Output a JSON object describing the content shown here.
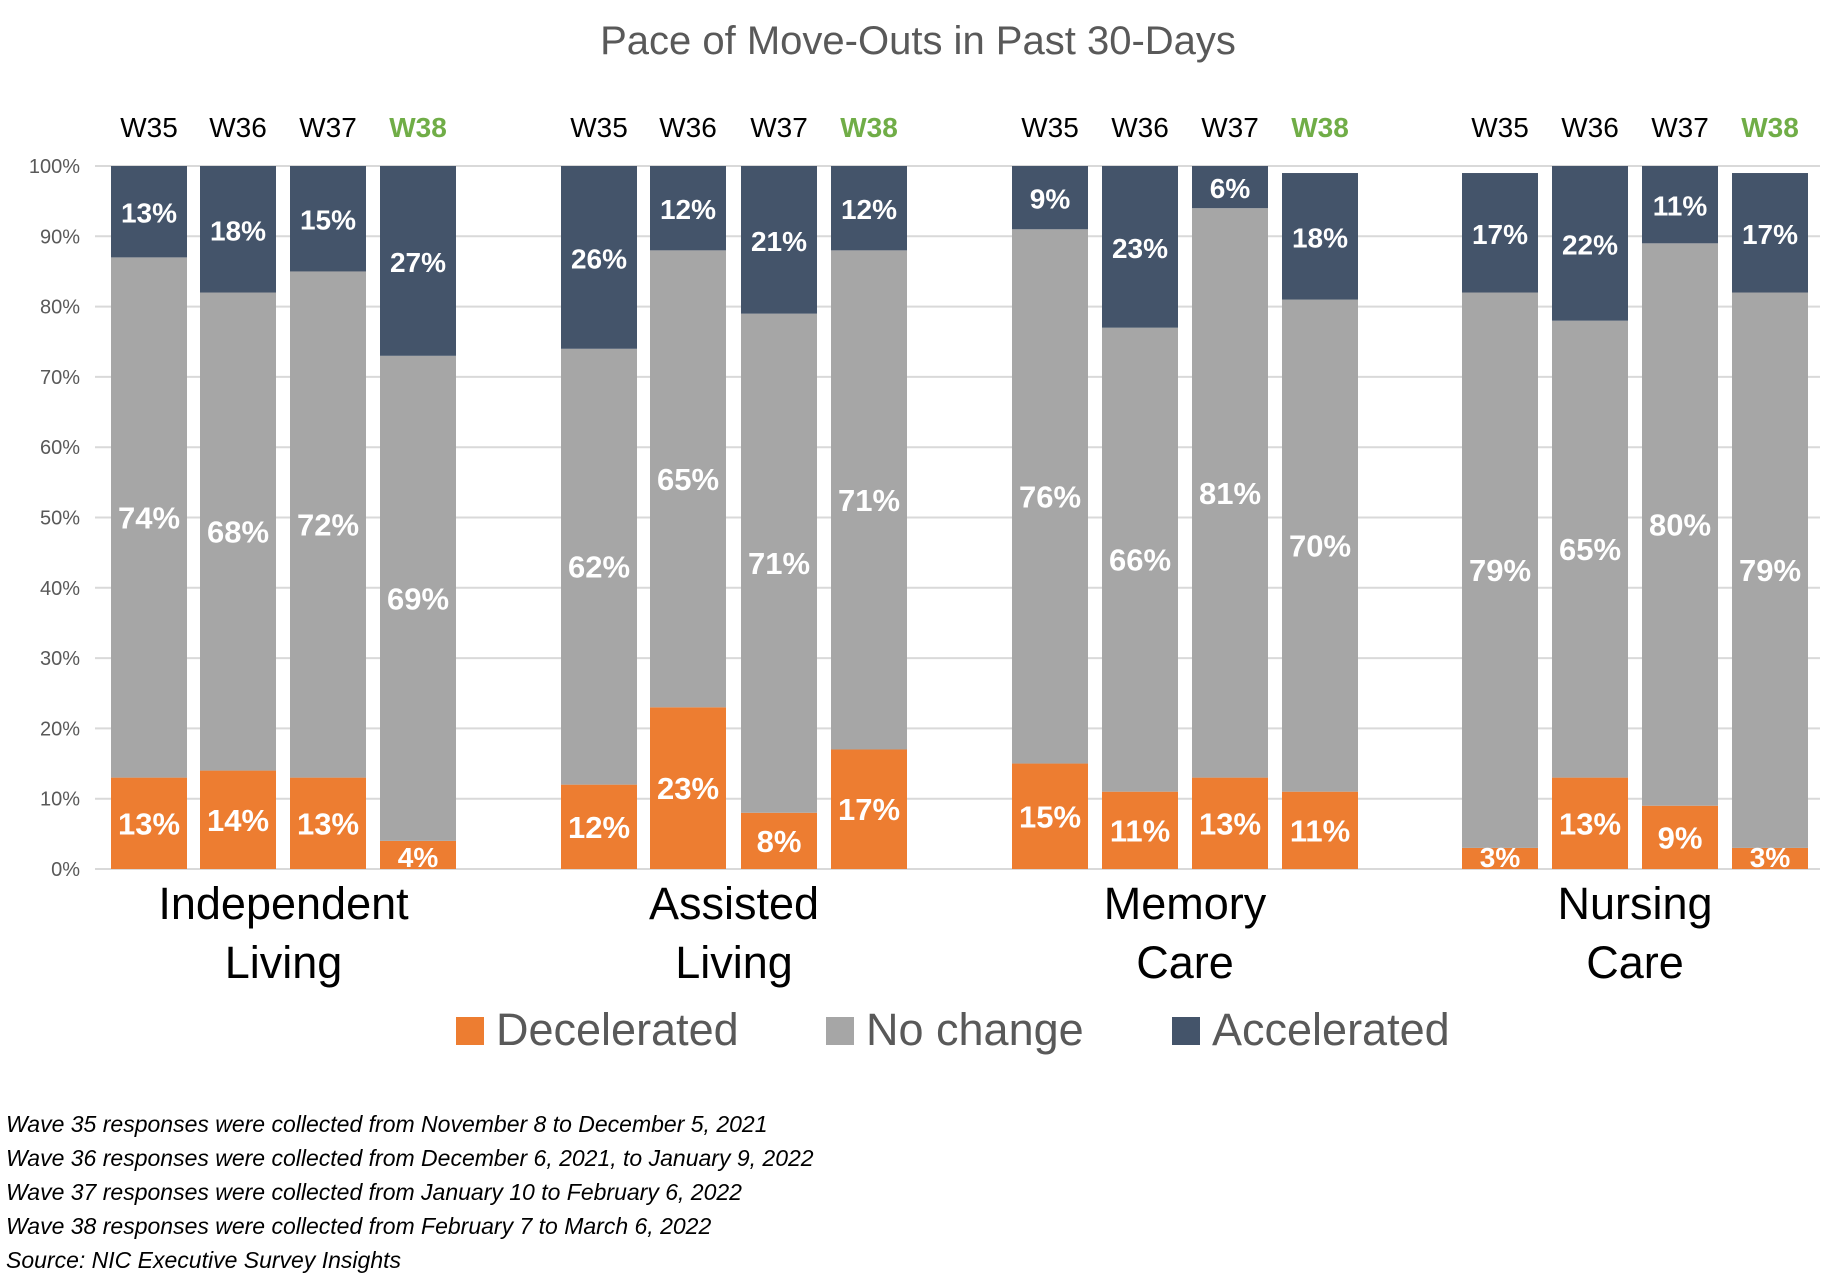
{
  "chart_data": {
    "type": "bar",
    "stacked": true,
    "title": "Pace of Move-Outs in Past 30-Days",
    "y_ticks": [
      "0%",
      "10%",
      "20%",
      "30%",
      "40%",
      "50%",
      "60%",
      "70%",
      "80%",
      "90%",
      "100%"
    ],
    "ylim": [
      0,
      100
    ],
    "grid": true,
    "legend_position": "bottom",
    "waves": [
      "W35",
      "W36",
      "W37",
      "W38"
    ],
    "highlight_wave": "W38",
    "series_order": [
      "Decelerated",
      "No change",
      "Accelerated"
    ],
    "colors": {
      "Decelerated": "#ed7d31",
      "No change": "#a6a6a6",
      "Accelerated": "#44546a",
      "highlight": "#70ad47"
    },
    "groups": [
      {
        "name_lines": [
          "Independent",
          "Living"
        ],
        "bars": [
          {
            "wave": "W35",
            "Decelerated": 13,
            "No change": 74,
            "Accelerated": 13
          },
          {
            "wave": "W36",
            "Decelerated": 14,
            "No change": 68,
            "Accelerated": 18
          },
          {
            "wave": "W37",
            "Decelerated": 13,
            "No change": 72,
            "Accelerated": 15
          },
          {
            "wave": "W38",
            "Decelerated": 4,
            "No change": 69,
            "Accelerated": 27
          }
        ]
      },
      {
        "name_lines": [
          "Assisted",
          "Living"
        ],
        "bars": [
          {
            "wave": "W35",
            "Decelerated": 12,
            "No change": 62,
            "Accelerated": 26
          },
          {
            "wave": "W36",
            "Decelerated": 23,
            "No change": 65,
            "Accelerated": 12
          },
          {
            "wave": "W37",
            "Decelerated": 8,
            "No change": 71,
            "Accelerated": 21
          },
          {
            "wave": "W38",
            "Decelerated": 17,
            "No change": 71,
            "Accelerated": 12
          }
        ]
      },
      {
        "name_lines": [
          "Memory",
          "Care"
        ],
        "bars": [
          {
            "wave": "W35",
            "Decelerated": 15,
            "No change": 76,
            "Accelerated": 9
          },
          {
            "wave": "W36",
            "Decelerated": 11,
            "No change": 66,
            "Accelerated": 23
          },
          {
            "wave": "W37",
            "Decelerated": 13,
            "No change": 81,
            "Accelerated": 6
          },
          {
            "wave": "W38",
            "Decelerated": 11,
            "No change": 70,
            "Accelerated": 18
          }
        ]
      },
      {
        "name_lines": [
          "Nursing",
          "Care"
        ],
        "bars": [
          {
            "wave": "W35",
            "Decelerated": 3,
            "No change": 79,
            "Accelerated": 17
          },
          {
            "wave": "W36",
            "Decelerated": 13,
            "No change": 65,
            "Accelerated": 22
          },
          {
            "wave": "W37",
            "Decelerated": 9,
            "No change": 80,
            "Accelerated": 11
          },
          {
            "wave": "W38",
            "Decelerated": 3,
            "No change": 79,
            "Accelerated": 17
          }
        ]
      }
    ],
    "notes": [
      "Wave 35 responses were collected from November 8 to December 5, 2021",
      "Wave 36 responses were collected from December 6, 2021, to January 9, 2022",
      "Wave 37 responses were collected from January 10 to February 6, 2022",
      "Wave 38 responses were collected from February 7 to March 6, 2022",
      "Source: NIC Executive Survey Insights"
    ]
  }
}
